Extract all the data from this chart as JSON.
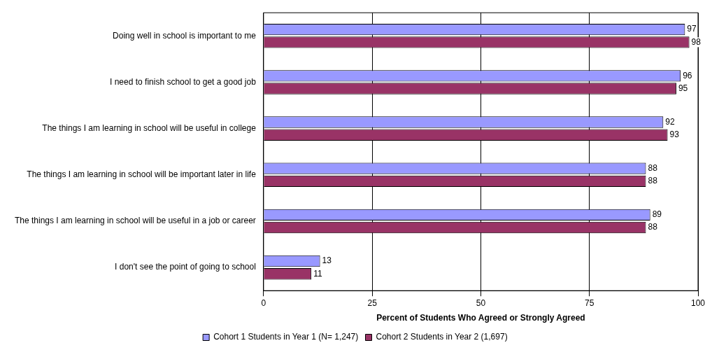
{
  "chart_data": {
    "type": "bar",
    "orientation": "horizontal",
    "xlabel": "Percent of Students Who Agreed or Strongly Agreed",
    "categories": [
      "Doing well in school is important to me",
      "I need to finish school to get a good job",
      "The things I am learning in school will be useful in college",
      "The things I am learning in school will be important later in life",
      "The things I am learning in school will be useful in a job or career",
      "I don't see the point of going to school"
    ],
    "series": [
      {
        "name": "Cohort 1 Students in Year 1 (N= 1,247)",
        "color": "#9999ff",
        "values": [
          97,
          96,
          92,
          88,
          89,
          13
        ]
      },
      {
        "name": "Cohort 2 Students in Year 2 (1,697)",
        "color": "#993366",
        "values": [
          98,
          95,
          93,
          88,
          88,
          11
        ]
      }
    ],
    "xlim": [
      0,
      100
    ],
    "xticks": [
      0,
      25,
      50,
      75,
      100
    ],
    "grid": "x",
    "legend": "bottom",
    "data_labels": true
  }
}
